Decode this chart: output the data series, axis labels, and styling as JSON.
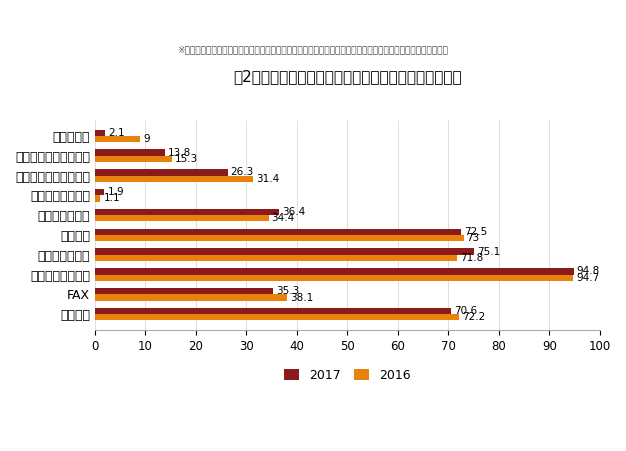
{
  "title": "図2　情報通信機器の世帯保有率の推移（総務省より）",
  "subtitle": "※家庭用テレビゲーム機、携帯用音楽プレイヤー、その他家電はいずれもインターネット接続可能なものとする",
  "categories": [
    "固定電話",
    "FAX",
    "モバイル端末全体",
    "スマートフォン",
    "パソコン",
    "タブレット端末",
    "ウェアラブル端末",
    "家庭用テレビゲーム機",
    "携帯用音楽プレイヤー",
    "その他家電"
  ],
  "values_2017": [
    70.6,
    35.3,
    94.8,
    75.1,
    72.5,
    36.4,
    1.9,
    26.3,
    13.8,
    2.1
  ],
  "values_2016": [
    72.2,
    38.1,
    94.7,
    71.8,
    73.0,
    34.4,
    1.1,
    31.4,
    15.3,
    9.0
  ],
  "labels_2016": [
    "72.2",
    "38.1",
    "94.7",
    "71.8",
    "73",
    "34.4",
    "1.1",
    "31.4",
    "15.3",
    "9"
  ],
  "labels_2017": [
    "70.6",
    "35.3",
    "94.8",
    "75.1",
    "72.5",
    "36.4",
    "1.9",
    "26.3",
    "13.8",
    "2.1"
  ],
  "color_2017": "#8B1A1A",
  "color_2016": "#E8820A",
  "xlim": [
    0,
    100
  ],
  "xticks": [
    0,
    10,
    20,
    30,
    40,
    50,
    60,
    70,
    80,
    90,
    100
  ],
  "legend_2017": "2017",
  "legend_2016": "2016",
  "bg_color": "#ffffff",
  "bar_height": 0.32
}
